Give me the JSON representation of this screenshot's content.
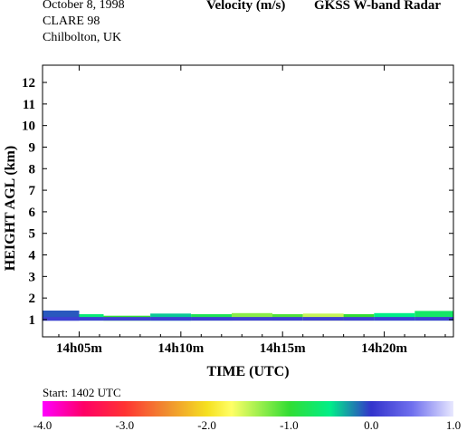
{
  "header": {
    "date": "October   8, 1998",
    "campaign": "CLARE 98",
    "location": "Chilbolton, UK",
    "quantity": "Velocity (m/s)",
    "instrument": "GKSS  W-band Radar"
  },
  "start_text": "Start: 1402 UTC",
  "chart_data": {
    "type": "heatmap",
    "title": "Velocity (m/s)",
    "xlabel": "TIME (UTC)",
    "ylabel": "HEIGHT AGL (km)",
    "xlim": [
      3.2,
      23.4
    ],
    "ylim": [
      0.2,
      12.8
    ],
    "x_ticks": [
      5,
      10,
      15,
      20
    ],
    "x_tick_labels": [
      "14h05m",
      "14h10m",
      "14h15m",
      "14h20m"
    ],
    "y_ticks": [
      1,
      2,
      3,
      4,
      5,
      6,
      7,
      8,
      9,
      10,
      11,
      12
    ],
    "y_tick_labels": [
      "1",
      "2",
      "3",
      "4",
      "5",
      "6",
      "7",
      "8",
      "9",
      "10",
      "11",
      "12"
    ],
    "colorbar": {
      "min": -4.0,
      "max": 1.0,
      "tick_values": [
        -4.0,
        -3.0,
        -2.0,
        -1.0,
        0.0,
        1.0
      ],
      "tick_labels": [
        "-4.0",
        "-3.0",
        "-2.0",
        "-1.0",
        "0.0",
        "1.0"
      ],
      "stops": [
        {
          "v": -4.0,
          "c": "#ff00ff"
        },
        {
          "v": -3.5,
          "c": "#ff0066"
        },
        {
          "v": -3.0,
          "c": "#ff3333"
        },
        {
          "v": -2.5,
          "c": "#f08c30"
        },
        {
          "v": -2.0,
          "c": "#f5e020"
        },
        {
          "v": -1.7,
          "c": "#ffff66"
        },
        {
          "v": -1.0,
          "c": "#33dd33"
        },
        {
          "v": -0.5,
          "c": "#00ee88"
        },
        {
          "v": 0.0,
          "c": "#3333cc"
        },
        {
          "v": 0.5,
          "c": "#7070ee"
        },
        {
          "v": 1.0,
          "c": "#e8e8ff"
        }
      ]
    },
    "cloud_layer": {
      "base_km": 0.95,
      "segments": [
        {
          "x0": 3.2,
          "x1": 5.0,
          "top_km": 1.42,
          "velocity": -0.1
        },
        {
          "x0": 5.0,
          "x1": 6.2,
          "top_km": 1.25,
          "velocity": -0.6
        },
        {
          "x0": 6.2,
          "x1": 8.5,
          "top_km": 1.18,
          "velocity": -1.0
        },
        {
          "x0": 8.5,
          "x1": 10.5,
          "top_km": 1.28,
          "velocity": -0.4
        },
        {
          "x0": 10.5,
          "x1": 12.5,
          "top_km": 1.25,
          "velocity": -0.8
        },
        {
          "x0": 12.5,
          "x1": 14.5,
          "top_km": 1.3,
          "velocity": -1.3
        },
        {
          "x0": 14.5,
          "x1": 16.0,
          "top_km": 1.25,
          "velocity": -1.1
        },
        {
          "x0": 16.0,
          "x1": 18.0,
          "top_km": 1.28,
          "velocity": -1.5
        },
        {
          "x0": 18.0,
          "x1": 19.5,
          "top_km": 1.25,
          "velocity": -1.0
        },
        {
          "x0": 19.5,
          "x1": 21.5,
          "top_km": 1.3,
          "velocity": -0.5
        },
        {
          "x0": 21.5,
          "x1": 23.4,
          "top_km": 1.4,
          "velocity": -0.7
        }
      ]
    }
  }
}
